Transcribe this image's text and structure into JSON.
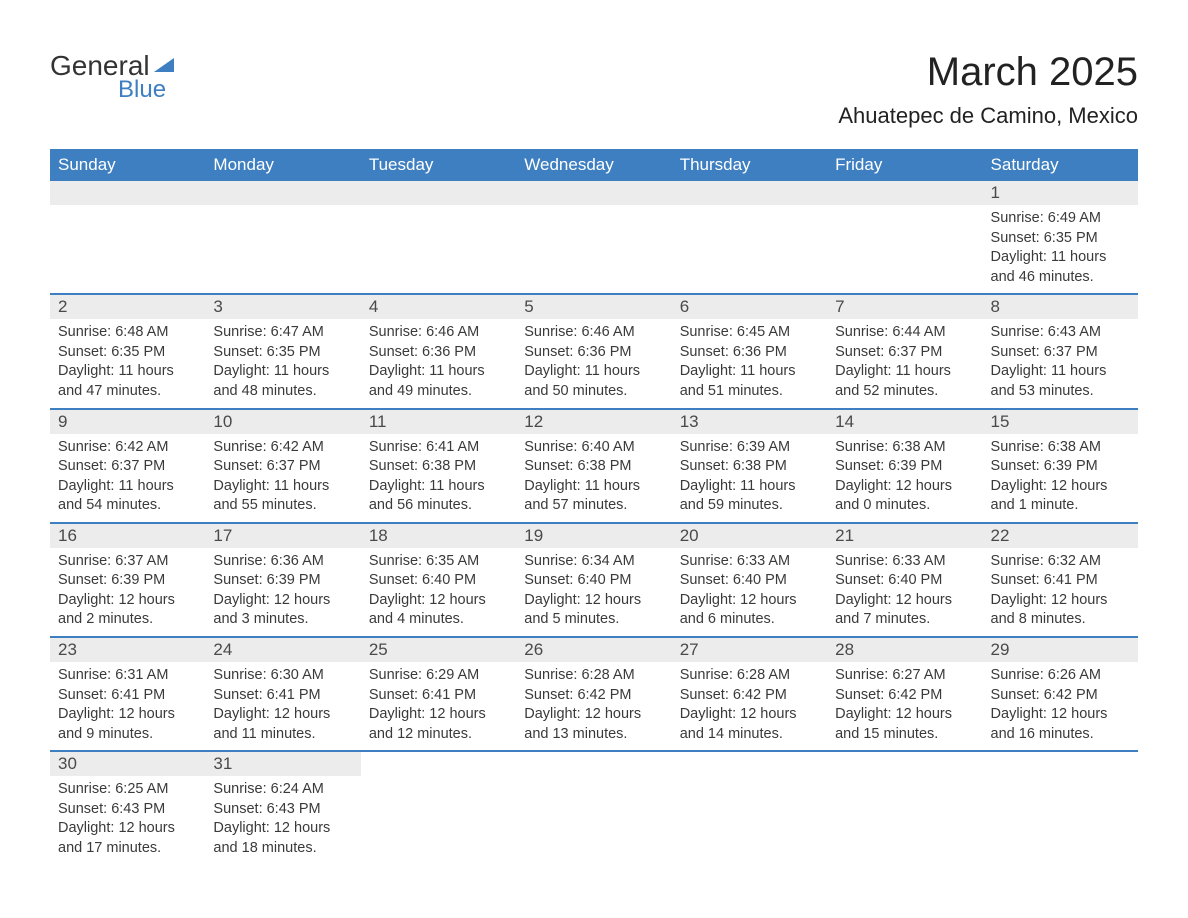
{
  "logo": {
    "general": "General",
    "blue": "Blue"
  },
  "title": "March 2025",
  "location": "Ahuatepec de Camino, Mexico",
  "headers": [
    "Sunday",
    "Monday",
    "Tuesday",
    "Wednesday",
    "Thursday",
    "Friday",
    "Saturday"
  ],
  "colors": {
    "header_bg": "#3d7fc0",
    "header_text": "#ffffff",
    "daynum_bg": "#ececec",
    "row_border": "#3d7fc0",
    "text": "#3a3a3a"
  },
  "weeks": [
    [
      null,
      null,
      null,
      null,
      null,
      null,
      {
        "n": "1",
        "sunrise": "6:49 AM",
        "sunset": "6:35 PM",
        "daylight": "11 hours and 46 minutes."
      }
    ],
    [
      {
        "n": "2",
        "sunrise": "6:48 AM",
        "sunset": "6:35 PM",
        "daylight": "11 hours and 47 minutes."
      },
      {
        "n": "3",
        "sunrise": "6:47 AM",
        "sunset": "6:35 PM",
        "daylight": "11 hours and 48 minutes."
      },
      {
        "n": "4",
        "sunrise": "6:46 AM",
        "sunset": "6:36 PM",
        "daylight": "11 hours and 49 minutes."
      },
      {
        "n": "5",
        "sunrise": "6:46 AM",
        "sunset": "6:36 PM",
        "daylight": "11 hours and 50 minutes."
      },
      {
        "n": "6",
        "sunrise": "6:45 AM",
        "sunset": "6:36 PM",
        "daylight": "11 hours and 51 minutes."
      },
      {
        "n": "7",
        "sunrise": "6:44 AM",
        "sunset": "6:37 PM",
        "daylight": "11 hours and 52 minutes."
      },
      {
        "n": "8",
        "sunrise": "6:43 AM",
        "sunset": "6:37 PM",
        "daylight": "11 hours and 53 minutes."
      }
    ],
    [
      {
        "n": "9",
        "sunrise": "6:42 AM",
        "sunset": "6:37 PM",
        "daylight": "11 hours and 54 minutes."
      },
      {
        "n": "10",
        "sunrise": "6:42 AM",
        "sunset": "6:37 PM",
        "daylight": "11 hours and 55 minutes."
      },
      {
        "n": "11",
        "sunrise": "6:41 AM",
        "sunset": "6:38 PM",
        "daylight": "11 hours and 56 minutes."
      },
      {
        "n": "12",
        "sunrise": "6:40 AM",
        "sunset": "6:38 PM",
        "daylight": "11 hours and 57 minutes."
      },
      {
        "n": "13",
        "sunrise": "6:39 AM",
        "sunset": "6:38 PM",
        "daylight": "11 hours and 59 minutes."
      },
      {
        "n": "14",
        "sunrise": "6:38 AM",
        "sunset": "6:39 PM",
        "daylight": "12 hours and 0 minutes."
      },
      {
        "n": "15",
        "sunrise": "6:38 AM",
        "sunset": "6:39 PM",
        "daylight": "12 hours and 1 minute."
      }
    ],
    [
      {
        "n": "16",
        "sunrise": "6:37 AM",
        "sunset": "6:39 PM",
        "daylight": "12 hours and 2 minutes."
      },
      {
        "n": "17",
        "sunrise": "6:36 AM",
        "sunset": "6:39 PM",
        "daylight": "12 hours and 3 minutes."
      },
      {
        "n": "18",
        "sunrise": "6:35 AM",
        "sunset": "6:40 PM",
        "daylight": "12 hours and 4 minutes."
      },
      {
        "n": "19",
        "sunrise": "6:34 AM",
        "sunset": "6:40 PM",
        "daylight": "12 hours and 5 minutes."
      },
      {
        "n": "20",
        "sunrise": "6:33 AM",
        "sunset": "6:40 PM",
        "daylight": "12 hours and 6 minutes."
      },
      {
        "n": "21",
        "sunrise": "6:33 AM",
        "sunset": "6:40 PM",
        "daylight": "12 hours and 7 minutes."
      },
      {
        "n": "22",
        "sunrise": "6:32 AM",
        "sunset": "6:41 PM",
        "daylight": "12 hours and 8 minutes."
      }
    ],
    [
      {
        "n": "23",
        "sunrise": "6:31 AM",
        "sunset": "6:41 PM",
        "daylight": "12 hours and 9 minutes."
      },
      {
        "n": "24",
        "sunrise": "6:30 AM",
        "sunset": "6:41 PM",
        "daylight": "12 hours and 11 minutes."
      },
      {
        "n": "25",
        "sunrise": "6:29 AM",
        "sunset": "6:41 PM",
        "daylight": "12 hours and 12 minutes."
      },
      {
        "n": "26",
        "sunrise": "6:28 AM",
        "sunset": "6:42 PM",
        "daylight": "12 hours and 13 minutes."
      },
      {
        "n": "27",
        "sunrise": "6:28 AM",
        "sunset": "6:42 PM",
        "daylight": "12 hours and 14 minutes."
      },
      {
        "n": "28",
        "sunrise": "6:27 AM",
        "sunset": "6:42 PM",
        "daylight": "12 hours and 15 minutes."
      },
      {
        "n": "29",
        "sunrise": "6:26 AM",
        "sunset": "6:42 PM",
        "daylight": "12 hours and 16 minutes."
      }
    ],
    [
      {
        "n": "30",
        "sunrise": "6:25 AM",
        "sunset": "6:43 PM",
        "daylight": "12 hours and 17 minutes."
      },
      {
        "n": "31",
        "sunrise": "6:24 AM",
        "sunset": "6:43 PM",
        "daylight": "12 hours and 18 minutes."
      },
      null,
      null,
      null,
      null,
      null
    ]
  ],
  "labels": {
    "sunrise": "Sunrise: ",
    "sunset": "Sunset: ",
    "daylight": "Daylight: "
  }
}
